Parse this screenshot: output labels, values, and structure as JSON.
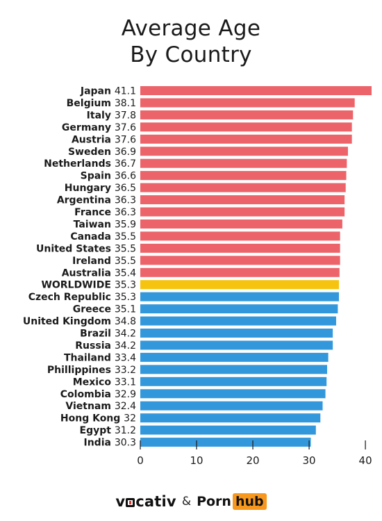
{
  "title_lines": [
    "Average Age",
    "By Country"
  ],
  "footer": {
    "brand1_prefix": "v",
    "brand1_suffix": "cativ",
    "amp": "&",
    "brand2_main": "Porn",
    "brand2_box": "hub"
  },
  "colors": {
    "above": "#ec6369",
    "worldwide": "#f6c40f",
    "below": "#3398db"
  },
  "chart_data": {
    "type": "bar",
    "orientation": "horizontal",
    "title": "Average Age By Country",
    "xlim": [
      0,
      41.1
    ],
    "xticks": [
      0,
      10,
      20,
      30,
      40
    ],
    "grid": false,
    "categories": [
      "Japan",
      "Belgium",
      "Italy",
      "Germany",
      "Austria",
      "Sweden",
      "Netherlands",
      "Spain",
      "Hungary",
      "Argentina",
      "France",
      "Taiwan",
      "Canada",
      "United States",
      "Ireland",
      "Australia",
      "WORLDWIDE",
      "Czech Republic",
      "Greece",
      "United Kingdom",
      "Brazil",
      "Russia",
      "Thailand",
      "Phillippines",
      "Mexico",
      "Colombia",
      "Vietnam",
      "Hong Kong",
      "Egypt",
      "India"
    ],
    "value_labels": [
      "41.1",
      "38.1",
      "37.8",
      "37.6",
      "37.6",
      "36.9",
      "36.7",
      "36.6",
      "36.5",
      "36.3",
      "36.3",
      "35.9",
      "35.5",
      "35.5",
      "35.5",
      "35.4",
      "35.3",
      "35.3",
      "35.1",
      "34.8",
      "34.2",
      "34.2",
      "33.4",
      "33.2",
      "33.1",
      "32.9",
      "32.4",
      "32",
      "31.2",
      "30.3"
    ],
    "values": [
      41.1,
      38.1,
      37.8,
      37.6,
      37.6,
      36.9,
      36.7,
      36.6,
      36.5,
      36.3,
      36.3,
      35.9,
      35.5,
      35.5,
      35.5,
      35.4,
      35.3,
      35.3,
      35.1,
      34.8,
      34.2,
      34.2,
      33.4,
      33.2,
      33.1,
      32.9,
      32.4,
      32,
      31.2,
      30.3
    ],
    "groups": [
      "above",
      "above",
      "above",
      "above",
      "above",
      "above",
      "above",
      "above",
      "above",
      "above",
      "above",
      "above",
      "above",
      "above",
      "above",
      "above",
      "worldwide",
      "below",
      "below",
      "below",
      "below",
      "below",
      "below",
      "below",
      "below",
      "below",
      "below",
      "below",
      "below",
      "below"
    ]
  }
}
